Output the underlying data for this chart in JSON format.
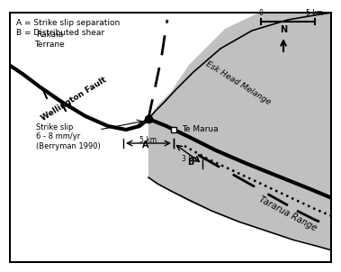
{
  "background_color": "#ffffff",
  "gray_color": "#c0c0c0",
  "legend_text": [
    "A = Strike slip separation",
    "B = Distributed shear"
  ],
  "labels": {
    "tararua": "Tararua Range",
    "te_marua": "Te Marua",
    "wellington": "Wellington Fault",
    "rakaia": "Rakaia\nTerrane",
    "esk": "Esk Head Melange",
    "strike_slip": "Strike slip\n6 - 8 mm/yr\n(Berryman 1990)"
  },
  "scale_label": "5 km",
  "scale_zero": "0"
}
